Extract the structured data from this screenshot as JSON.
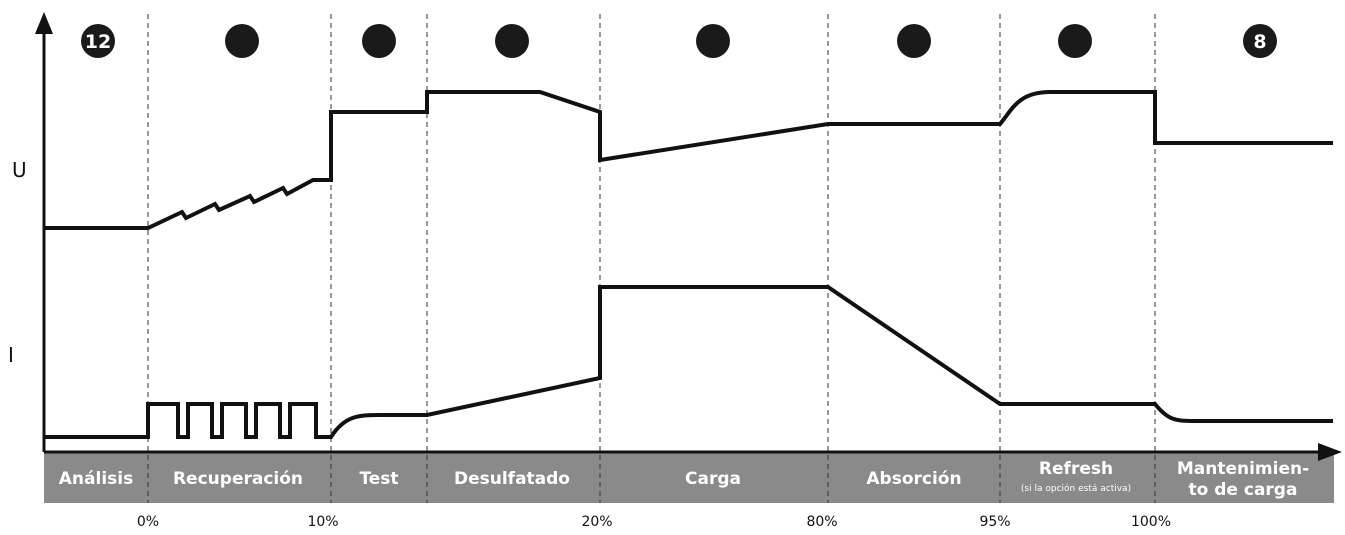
{
  "axes": {
    "u_label": "U",
    "i_label": "I"
  },
  "badges": [
    "12",
    "",
    "",
    "",
    "",
    "",
    "",
    "8"
  ],
  "stages": [
    {
      "label": "Análisis",
      "sub": ""
    },
    {
      "label": "Recuperación",
      "sub": ""
    },
    {
      "label": "Test",
      "sub": ""
    },
    {
      "label": "Desulfatado",
      "sub": ""
    },
    {
      "label": "Carga",
      "sub": ""
    },
    {
      "label": "Absorción",
      "sub": ""
    },
    {
      "label": "Refresh",
      "sub": "(si la opción está activa)"
    },
    {
      "label": "Mantenimien-",
      "label2": "to de carga",
      "sub": ""
    }
  ],
  "percent_marks": [
    "0%",
    "10%",
    "20%",
    "80%",
    "95%",
    "100%"
  ],
  "colors": {
    "band": "#8a8a8a",
    "line": "#111111",
    "badge": "#1a1a1a"
  }
}
